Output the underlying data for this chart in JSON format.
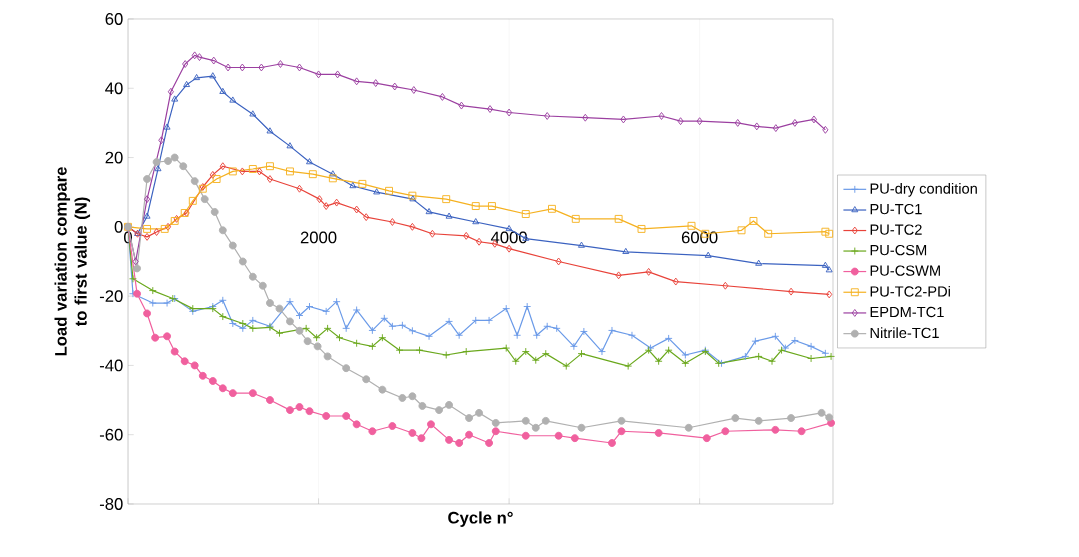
{
  "chart_data": {
    "type": "line",
    "xlabel": "Cycle n°",
    "ylabel": "Load variation compare to first value (N)",
    "xlim": [
      0,
      7400
    ],
    "ylim": [
      -80,
      60
    ],
    "xticks": [
      0,
      2000,
      4000,
      6000
    ],
    "yticks": [
      -80,
      -60,
      -40,
      -20,
      0,
      20,
      40,
      60
    ],
    "grid": "x",
    "legend": "right",
    "series": [
      {
        "name": "PU-dry condition",
        "color": "#6a9ae8",
        "marker": "cross",
        "x": [
          0,
          52,
          260,
          410,
          490,
          680,
          890,
          995,
          1100,
          1205,
          1310,
          1490,
          1700,
          1800,
          1905,
          2080,
          2190,
          2290,
          2400,
          2565,
          2690,
          2775,
          2880,
          2985,
          3160,
          3370,
          3476,
          3650,
          3790,
          3970,
          4085,
          4190,
          4290,
          4400,
          4500,
          4680,
          4785,
          4975,
          5080,
          5290,
          5485,
          5675,
          5850,
          6060,
          6230,
          6480,
          6585,
          6795,
          6900,
          7000,
          7170,
          7320
        ],
        "values": [
          0,
          -19.3,
          -22,
          -22,
          -20.7,
          -24.4,
          -23,
          -21.2,
          -27.9,
          -29.3,
          -27,
          -28.7,
          -21.6,
          -25.6,
          -23,
          -24.4,
          -21.6,
          -29.3,
          -24,
          -29.9,
          -26.4,
          -28.7,
          -28.4,
          -30,
          -31.6,
          -27.3,
          -31.3,
          -27,
          -27,
          -23.6,
          -31.3,
          -23,
          -31.3,
          -28.7,
          -29.3,
          -34.5,
          -30.2,
          -36,
          -29.9,
          -31.3,
          -35,
          -32.2,
          -37,
          -35.6,
          -39.4,
          -37.4,
          -33,
          -31.6,
          -35,
          -32.8,
          -34.5,
          -36.5
        ]
      },
      {
        "name": "PU-TC1",
        "color": "#3b62c0",
        "marker": "triangle",
        "x": [
          0,
          100,
          200,
          315,
          410,
          490,
          615,
          720,
          890,
          995,
          1100,
          1310,
          1490,
          1700,
          1905,
          2150,
          2360,
          2610,
          2990,
          3160,
          3370,
          3650,
          4000,
          4175,
          4760,
          5225,
          6090,
          6620,
          7320,
          7360
        ],
        "values": [
          0,
          -2,
          3,
          16.7,
          28.7,
          36.8,
          41,
          43,
          43.5,
          39,
          36.5,
          32.5,
          27.6,
          23.3,
          18.7,
          15.2,
          11.8,
          10,
          8,
          4.3,
          3,
          1.4,
          -0.6,
          -3.4,
          -5.4,
          -7.2,
          -8.3,
          -10.6,
          -11.2,
          -12.5
        ]
      },
      {
        "name": "PU-TC2",
        "color": "#e8433a",
        "marker": "diamond",
        "x": [
          0,
          100,
          200,
          300,
          420,
          510,
          615,
          785,
          890,
          995,
          1200,
          1380,
          1490,
          1800,
          2010,
          2080,
          2190,
          2400,
          2500,
          2775,
          2985,
          3195,
          3550,
          3685,
          3850,
          4000,
          4520,
          5150,
          5465,
          5750,
          6270,
          6960,
          7360
        ],
        "values": [
          0,
          -2,
          -2.9,
          -1.5,
          0,
          2.3,
          4,
          11.5,
          15,
          17.5,
          16,
          16,
          13.8,
          11,
          8,
          6,
          7,
          5,
          2.8,
          1.4,
          0,
          -2,
          -2.6,
          -4.3,
          -4.9,
          -6.3,
          -10,
          -14,
          -13,
          -15.8,
          -17,
          -18.7,
          -19.5
        ]
      },
      {
        "name": "PU-CSM",
        "color": "#6aa81c",
        "marker": "cross",
        "x": [
          0,
          52,
          260,
          470,
          680,
          890,
          995,
          1205,
          1310,
          1490,
          1590,
          1870,
          1980,
          2095,
          2220,
          2400,
          2565,
          2670,
          2850,
          3060,
          3340,
          3550,
          3970,
          4070,
          4175,
          4280,
          4385,
          4600,
          4760,
          5250,
          5465,
          5570,
          5675,
          5850,
          6060,
          6200,
          6620,
          6760,
          6860,
          7170,
          7380
        ],
        "values": [
          0,
          -15,
          -18.4,
          -20.7,
          -23.6,
          -23.6,
          -25.9,
          -27.9,
          -29.3,
          -29,
          -30.7,
          -29.3,
          -32,
          -29.3,
          -32,
          -33.6,
          -34.5,
          -32,
          -35.6,
          -35.6,
          -37,
          -36,
          -35,
          -38.8,
          -36,
          -38.5,
          -36.6,
          -40.2,
          -36.6,
          -40.2,
          -35.6,
          -38.8,
          -35.6,
          -39.4,
          -36,
          -39.4,
          -37.4,
          -38.8,
          -35.6,
          -38,
          -37.4
        ]
      },
      {
        "name": "PU-CSWM",
        "color": "#f0609e",
        "marker": "circle",
        "x": [
          0,
          95,
          200,
          285,
          410,
          490,
          595,
          700,
          785,
          890,
          995,
          1100,
          1310,
          1490,
          1700,
          1800,
          1905,
          2080,
          2290,
          2400,
          2565,
          2775,
          2985,
          3080,
          3180,
          3370,
          3476,
          3580,
          3790,
          3860,
          4175,
          4520,
          4690,
          5080,
          5180,
          5570,
          6075,
          6270,
          6795,
          7070,
          7380
        ],
        "values": [
          0,
          -19.3,
          -25,
          -32,
          -31.6,
          -36,
          -38.8,
          -40,
          -43,
          -44.5,
          -46.6,
          -48,
          -48,
          -50,
          -52.9,
          -52,
          -53.2,
          -54.6,
          -54.6,
          -57,
          -59,
          -57.5,
          -59.5,
          -61,
          -57,
          -61.5,
          -62.4,
          -60,
          -62.4,
          -59,
          -60.3,
          -60.3,
          -61,
          -62.4,
          -59,
          -59.5,
          -61,
          -59,
          -58.6,
          -59,
          -56.6
        ]
      },
      {
        "name": "PU-TC2-PDi",
        "color": "#f5b120",
        "marker": "square",
        "x": [
          0,
          200,
          385,
          490,
          595,
          680,
          785,
          930,
          1100,
          1310,
          1490,
          1700,
          1940,
          2150,
          2460,
          2740,
          2985,
          3340,
          3650,
          3820,
          4175,
          4450,
          4700,
          5150,
          5390,
          5915,
          6060,
          6440,
          6565,
          6720,
          7320,
          7360
        ],
        "values": [
          0,
          -0.6,
          -0.6,
          1.7,
          4,
          7.5,
          11,
          13.8,
          16,
          16.7,
          17.5,
          16,
          15.2,
          14,
          12.4,
          10.4,
          9,
          8,
          6,
          6,
          3.7,
          5.2,
          2.3,
          2.3,
          -0.6,
          0.3,
          -2,
          -1,
          1.7,
          -2,
          -1.4,
          -2
        ]
      },
      {
        "name": "EPDM-TC1",
        "color": "#9b3fa0",
        "marker": "diamond",
        "x": [
          0,
          80,
          200,
          350,
          450,
          600,
          700,
          750,
          900,
          1050,
          1200,
          1400,
          1600,
          1800,
          2000,
          2200,
          2400,
          2600,
          2800,
          3000,
          3300,
          3500,
          3800,
          4000,
          4400,
          4800,
          5200,
          5600,
          5800,
          6000,
          6400,
          6600,
          6800,
          7000,
          7200,
          7320
        ],
        "values": [
          0,
          -10,
          8,
          25,
          39,
          47,
          49.5,
          49,
          48,
          46,
          46,
          46,
          47,
          46,
          44,
          44,
          42,
          41.5,
          40.5,
          39.5,
          37.5,
          35,
          34,
          33,
          32,
          31.5,
          31,
          32,
          30.5,
          30.5,
          30,
          29,
          28.5,
          30,
          31,
          28
        ]
      },
      {
        "name": "Nitrile-TC1",
        "color": "#b0b0b0",
        "marker": "circle",
        "x": [
          0,
          95,
          200,
          300,
          420,
          490,
          580,
          700,
          805,
          910,
          995,
          1100,
          1205,
          1310,
          1415,
          1490,
          1590,
          1700,
          1800,
          1885,
          1990,
          2095,
          2290,
          2500,
          2670,
          2880,
          2985,
          3090,
          3265,
          3370,
          3580,
          3685,
          3860,
          4175,
          4280,
          4385,
          4760,
          5180,
          5885,
          6375,
          6620,
          6960,
          7280,
          7360
        ],
        "values": [
          0,
          -12,
          13.8,
          18.7,
          19,
          20,
          17.5,
          13.2,
          8,
          4.3,
          -1,
          -5.4,
          -10,
          -14.4,
          -17,
          -22,
          -23.6,
          -27.3,
          -30,
          -33,
          -34.5,
          -37.4,
          -40.8,
          -44,
          -47,
          -49.4,
          -48.9,
          -51.7,
          -52.9,
          -51.4,
          -55.2,
          -53.7,
          -56.6,
          -56,
          -58,
          -56,
          -58,
          -56,
          -58,
          -55.2,
          -56,
          -55.2,
          -53.7,
          -55
        ]
      }
    ]
  }
}
